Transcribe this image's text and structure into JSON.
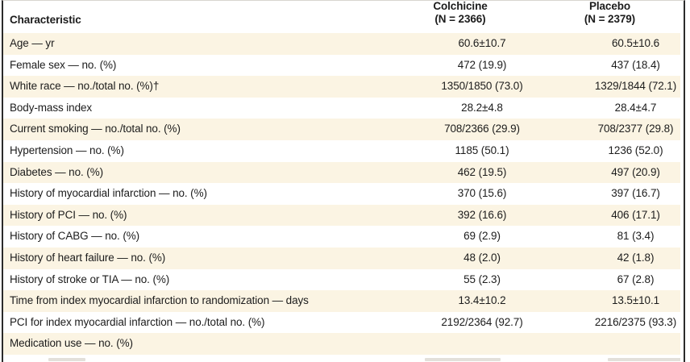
{
  "table": {
    "header": {
      "characteristic": "Characteristic",
      "col2_name": "Colchicine",
      "col2_n": "(N = 2366)",
      "col3_name": "Placebo",
      "col3_n": "(N = 2379)"
    },
    "rows": [
      {
        "characteristic": "Age — yr",
        "colchicine": "60.6±10.7",
        "placebo": "60.5±10.6"
      },
      {
        "characteristic": "Female sex — no. (%)",
        "colchicine": "472 (19.9)",
        "placebo": "437 (18.4)"
      },
      {
        "characteristic": "White race — no./total no. (%)†",
        "colchicine": "1350/1850 (73.0)",
        "placebo": "1329/1844 (72.1)"
      },
      {
        "characteristic": "Body-mass index",
        "colchicine": "28.2±4.8",
        "placebo": "28.4±4.7"
      },
      {
        "characteristic": "Current smoking — no./total no. (%)",
        "colchicine": "708/2366 (29.9)",
        "placebo": "708/2377 (29.8)"
      },
      {
        "characteristic": "Hypertension — no. (%)",
        "colchicine": "1185 (50.1)",
        "placebo": "1236 (52.0)"
      },
      {
        "characteristic": "Diabetes — no. (%)",
        "colchicine": "462 (19.5)",
        "placebo": "497 (20.9)"
      },
      {
        "characteristic": "History of myocardial infarction — no. (%)",
        "colchicine": "370 (15.6)",
        "placebo": "397 (16.7)"
      },
      {
        "characteristic": "History of PCI — no. (%)",
        "colchicine": "392 (16.6)",
        "placebo": "406 (17.1)"
      },
      {
        "characteristic": "History of CABG — no. (%)",
        "colchicine": "69 (2.9)",
        "placebo": "81 (3.4)"
      },
      {
        "characteristic": "History of heart failure — no. (%)",
        "colchicine": "48 (2.0)",
        "placebo": "42 (1.8)"
      },
      {
        "characteristic": "History of stroke or TIA — no. (%)",
        "colchicine": "55 (2.3)",
        "placebo": "67 (2.8)"
      },
      {
        "characteristic": "Time from index myocardial infarction to randomization — days",
        "colchicine": "13.4±10.2",
        "placebo": "13.5±10.1"
      },
      {
        "characteristic": "PCI for index myocardial infarction — no./total no. (%)",
        "colchicine": "2192/2364 (92.7)",
        "placebo": "2216/2375 (93.3)"
      },
      {
        "characteristic": "Medication use — no. (%)",
        "colchicine": "",
        "placebo": ""
      }
    ]
  },
  "colors": {
    "row_stripe": "#fbf4e3",
    "frame_border": "#2b2b2b",
    "text": "#1c1c1c"
  }
}
